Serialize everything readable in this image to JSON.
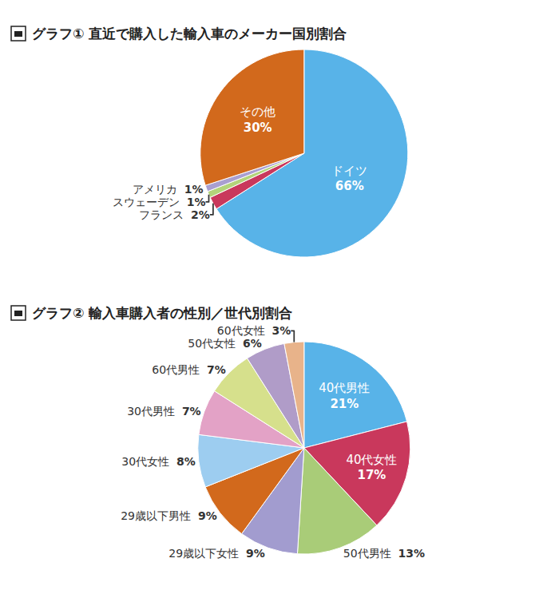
{
  "chart_data": [
    {
      "type": "pie",
      "title": "グラフ① 直近で購入した輸入車のメーカー国別割合",
      "categories": [
        "ドイツ",
        "フランス",
        "スウェーデン",
        "アメリカ",
        "その他"
      ],
      "values": [
        66,
        2,
        1,
        1,
        30
      ],
      "value_labels": [
        "66%",
        "2%",
        "1%",
        "1%",
        "30%"
      ],
      "colors": [
        "#58b3e8",
        "#c9385c",
        "#b3d47a",
        "#a99fd0",
        "#d2691c"
      ],
      "data_labels": true
    },
    {
      "type": "pie",
      "title": "グラフ② 輸入車購入者の性別／世代別割合",
      "categories": [
        "40代男性",
        "40代女性",
        "50代男性",
        "29歳以下女性",
        "29歳以下男性",
        "30代女性",
        "30代男性",
        "60代男性",
        "50代女性",
        "60代女性"
      ],
      "values": [
        21,
        17,
        13,
        9,
        9,
        8,
        7,
        7,
        6,
        3
      ],
      "value_labels": [
        "21%",
        "17%",
        "13%",
        "9%",
        "9%",
        "8%",
        "7%",
        "7%",
        "6%",
        "3%"
      ],
      "colors": [
        "#58b3e8",
        "#c9385c",
        "#a9cc78",
        "#a29ccf",
        "#d2691c",
        "#9dcdf0",
        "#e3a2c6",
        "#d6e08c",
        "#b09cc8",
        "#e8b38a"
      ],
      "data_labels": true
    }
  ]
}
